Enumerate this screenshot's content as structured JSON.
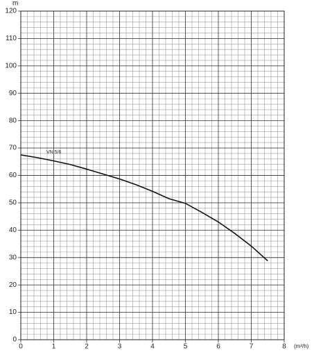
{
  "chart_data": {
    "type": "line",
    "y_label": "m",
    "x_label": "(m³/h)",
    "x": [
      0,
      0.5,
      1,
      1.5,
      2,
      2.5,
      3,
      3.5,
      4,
      4.5,
      5,
      5.5,
      6,
      6.5,
      7,
      7.5
    ],
    "series": [
      {
        "name": "VN 5/6",
        "color": "#111111",
        "values": [
          67.5,
          66.5,
          65.3,
          64,
          62.3,
          60.5,
          58.7,
          56.6,
          54.2,
          51.5,
          49.8,
          46.5,
          43,
          38.8,
          34.2,
          28.8
        ]
      }
    ],
    "xlim": [
      0,
      8
    ],
    "xticks": [
      0,
      1,
      2,
      3,
      4,
      5,
      6,
      7,
      8
    ],
    "ylim": [
      0,
      120
    ],
    "yticks": [
      0,
      10,
      20,
      30,
      40,
      50,
      60,
      70,
      80,
      90,
      100,
      110,
      120
    ],
    "grid": true
  }
}
